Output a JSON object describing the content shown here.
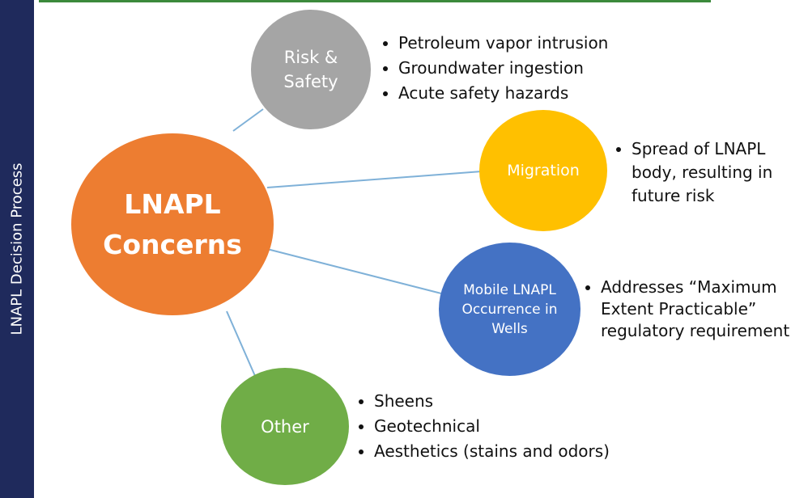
{
  "sidebar": {
    "label": "LNAPL Decision Process"
  },
  "center": {
    "label": "LNAPL Concerns"
  },
  "nodes": [
    {
      "label": "Risk & Safety",
      "bullets": [
        "Petroleum vapor intrusion",
        "Groundwater ingestion",
        "Acute safety hazards"
      ]
    },
    {
      "label": "Migration",
      "bullets": [
        "Spread of LNAPL body, resulting in future risk"
      ]
    },
    {
      "label": "Mobile LNAPL Occurrence in Wells",
      "bullets": [
        "Addresses “Maximum Extent Practicable” regulatory requirement"
      ]
    },
    {
      "label": "Other",
      "bullets": [
        "Sheens",
        "Geotechnical",
        "Aesthetics (stains and odors)"
      ]
    }
  ]
}
